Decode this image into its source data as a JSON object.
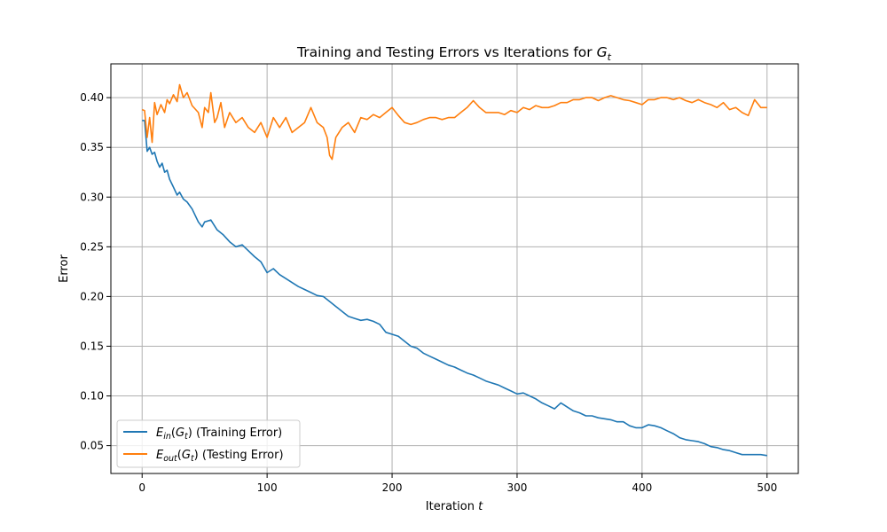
{
  "chart_data": {
    "type": "line",
    "title": "Training and Testing Errors vs Iterations for G_t",
    "title_parts": [
      "Training and Testing Errors vs Iterations for ",
      "G",
      "t"
    ],
    "xlabel": "Iteration t",
    "xlabel_parts": [
      "Iteration ",
      "t"
    ],
    "ylabel": "Error",
    "xlim": [
      -25,
      525
    ],
    "ylim": [
      0.022,
      0.434
    ],
    "xticks": [
      0,
      100,
      200,
      300,
      400,
      500
    ],
    "yticks": [
      0.05,
      0.1,
      0.15,
      0.2,
      0.25,
      0.3,
      0.35,
      0.4
    ],
    "grid": true,
    "legend_position": "lower-left",
    "series": [
      {
        "name": "E_in(G_t) (Training Error)",
        "legend_parts": [
          "E",
          "in",
          "(",
          "G",
          "t",
          ") (Training Error)"
        ],
        "color": "#1f77b4",
        "x": [
          0,
          2,
          4,
          6,
          8,
          10,
          12,
          14,
          16,
          18,
          20,
          22,
          25,
          28,
          30,
          33,
          36,
          40,
          45,
          48,
          50,
          55,
          60,
          65,
          70,
          75,
          80,
          85,
          90,
          95,
          100,
          105,
          110,
          115,
          120,
          125,
          130,
          135,
          140,
          145,
          150,
          155,
          160,
          165,
          170,
          175,
          180,
          185,
          190,
          195,
          200,
          205,
          210,
          215,
          220,
          225,
          230,
          235,
          240,
          245,
          250,
          255,
          260,
          265,
          270,
          275,
          280,
          285,
          290,
          295,
          300,
          305,
          310,
          315,
          320,
          325,
          330,
          335,
          340,
          345,
          350,
          355,
          360,
          365,
          370,
          375,
          380,
          385,
          390,
          395,
          400,
          405,
          410,
          415,
          420,
          425,
          430,
          435,
          440,
          445,
          450,
          455,
          460,
          465,
          470,
          475,
          480,
          485,
          490,
          495,
          500
        ],
        "y": [
          0.377,
          0.377,
          0.346,
          0.35,
          0.343,
          0.345,
          0.336,
          0.33,
          0.334,
          0.325,
          0.327,
          0.318,
          0.31,
          0.302,
          0.305,
          0.298,
          0.295,
          0.288,
          0.275,
          0.27,
          0.275,
          0.277,
          0.267,
          0.262,
          0.255,
          0.25,
          0.252,
          0.246,
          0.24,
          0.235,
          0.224,
          0.228,
          0.222,
          0.218,
          0.214,
          0.21,
          0.207,
          0.204,
          0.201,
          0.2,
          0.195,
          0.19,
          0.185,
          0.18,
          0.178,
          0.176,
          0.177,
          0.175,
          0.172,
          0.164,
          0.162,
          0.16,
          0.155,
          0.15,
          0.148,
          0.143,
          0.14,
          0.137,
          0.134,
          0.131,
          0.129,
          0.126,
          0.123,
          0.121,
          0.118,
          0.115,
          0.113,
          0.111,
          0.108,
          0.105,
          0.102,
          0.103,
          0.1,
          0.097,
          0.093,
          0.09,
          0.087,
          0.093,
          0.089,
          0.085,
          0.083,
          0.08,
          0.08,
          0.078,
          0.077,
          0.076,
          0.074,
          0.074,
          0.07,
          0.068,
          0.068,
          0.071,
          0.07,
          0.068,
          0.065,
          0.062,
          0.058,
          0.056,
          0.055,
          0.054,
          0.052,
          0.049,
          0.048,
          0.046,
          0.045,
          0.043,
          0.041,
          0.041,
          0.041,
          0.041,
          0.04
        ]
      },
      {
        "name": "E_out(G_t) (Testing Error)",
        "legend_parts": [
          "E",
          "out",
          "(",
          "G",
          "t",
          ") (Testing Error)"
        ],
        "color": "#ff7f0e",
        "x": [
          0,
          2,
          4,
          6,
          8,
          10,
          12,
          15,
          18,
          20,
          22,
          25,
          28,
          30,
          33,
          36,
          40,
          45,
          48,
          50,
          53,
          55,
          58,
          60,
          63,
          66,
          70,
          75,
          80,
          85,
          90,
          95,
          100,
          105,
          110,
          115,
          120,
          125,
          130,
          135,
          140,
          145,
          148,
          150,
          152,
          155,
          160,
          165,
          170,
          175,
          180,
          185,
          190,
          195,
          200,
          205,
          210,
          215,
          220,
          225,
          230,
          235,
          240,
          245,
          250,
          255,
          260,
          265,
          270,
          275,
          280,
          285,
          290,
          295,
          300,
          305,
          310,
          315,
          320,
          325,
          330,
          335,
          340,
          345,
          350,
          355,
          360,
          365,
          370,
          375,
          380,
          385,
          390,
          395,
          400,
          405,
          410,
          415,
          420,
          425,
          430,
          435,
          440,
          445,
          450,
          455,
          460,
          465,
          470,
          475,
          480,
          485,
          490,
          495,
          500
        ],
        "y": [
          0.388,
          0.387,
          0.36,
          0.38,
          0.355,
          0.395,
          0.383,
          0.393,
          0.385,
          0.398,
          0.394,
          0.403,
          0.396,
          0.413,
          0.4,
          0.405,
          0.392,
          0.385,
          0.37,
          0.39,
          0.385,
          0.405,
          0.375,
          0.38,
          0.395,
          0.37,
          0.385,
          0.375,
          0.38,
          0.37,
          0.365,
          0.375,
          0.36,
          0.38,
          0.37,
          0.38,
          0.365,
          0.37,
          0.375,
          0.39,
          0.375,
          0.37,
          0.36,
          0.342,
          0.338,
          0.36,
          0.37,
          0.375,
          0.365,
          0.38,
          0.378,
          0.383,
          0.38,
          0.385,
          0.39,
          0.382,
          0.375,
          0.373,
          0.375,
          0.378,
          0.38,
          0.38,
          0.378,
          0.38,
          0.38,
          0.385,
          0.39,
          0.397,
          0.39,
          0.385,
          0.385,
          0.385,
          0.383,
          0.387,
          0.385,
          0.39,
          0.388,
          0.392,
          0.39,
          0.39,
          0.392,
          0.395,
          0.395,
          0.398,
          0.398,
          0.4,
          0.4,
          0.397,
          0.4,
          0.402,
          0.4,
          0.398,
          0.397,
          0.395,
          0.393,
          0.398,
          0.398,
          0.4,
          0.4,
          0.398,
          0.4,
          0.397,
          0.395,
          0.398,
          0.395,
          0.393,
          0.39,
          0.395,
          0.388,
          0.39,
          0.385,
          0.382,
          0.398,
          0.39,
          0.39
        ]
      }
    ]
  }
}
